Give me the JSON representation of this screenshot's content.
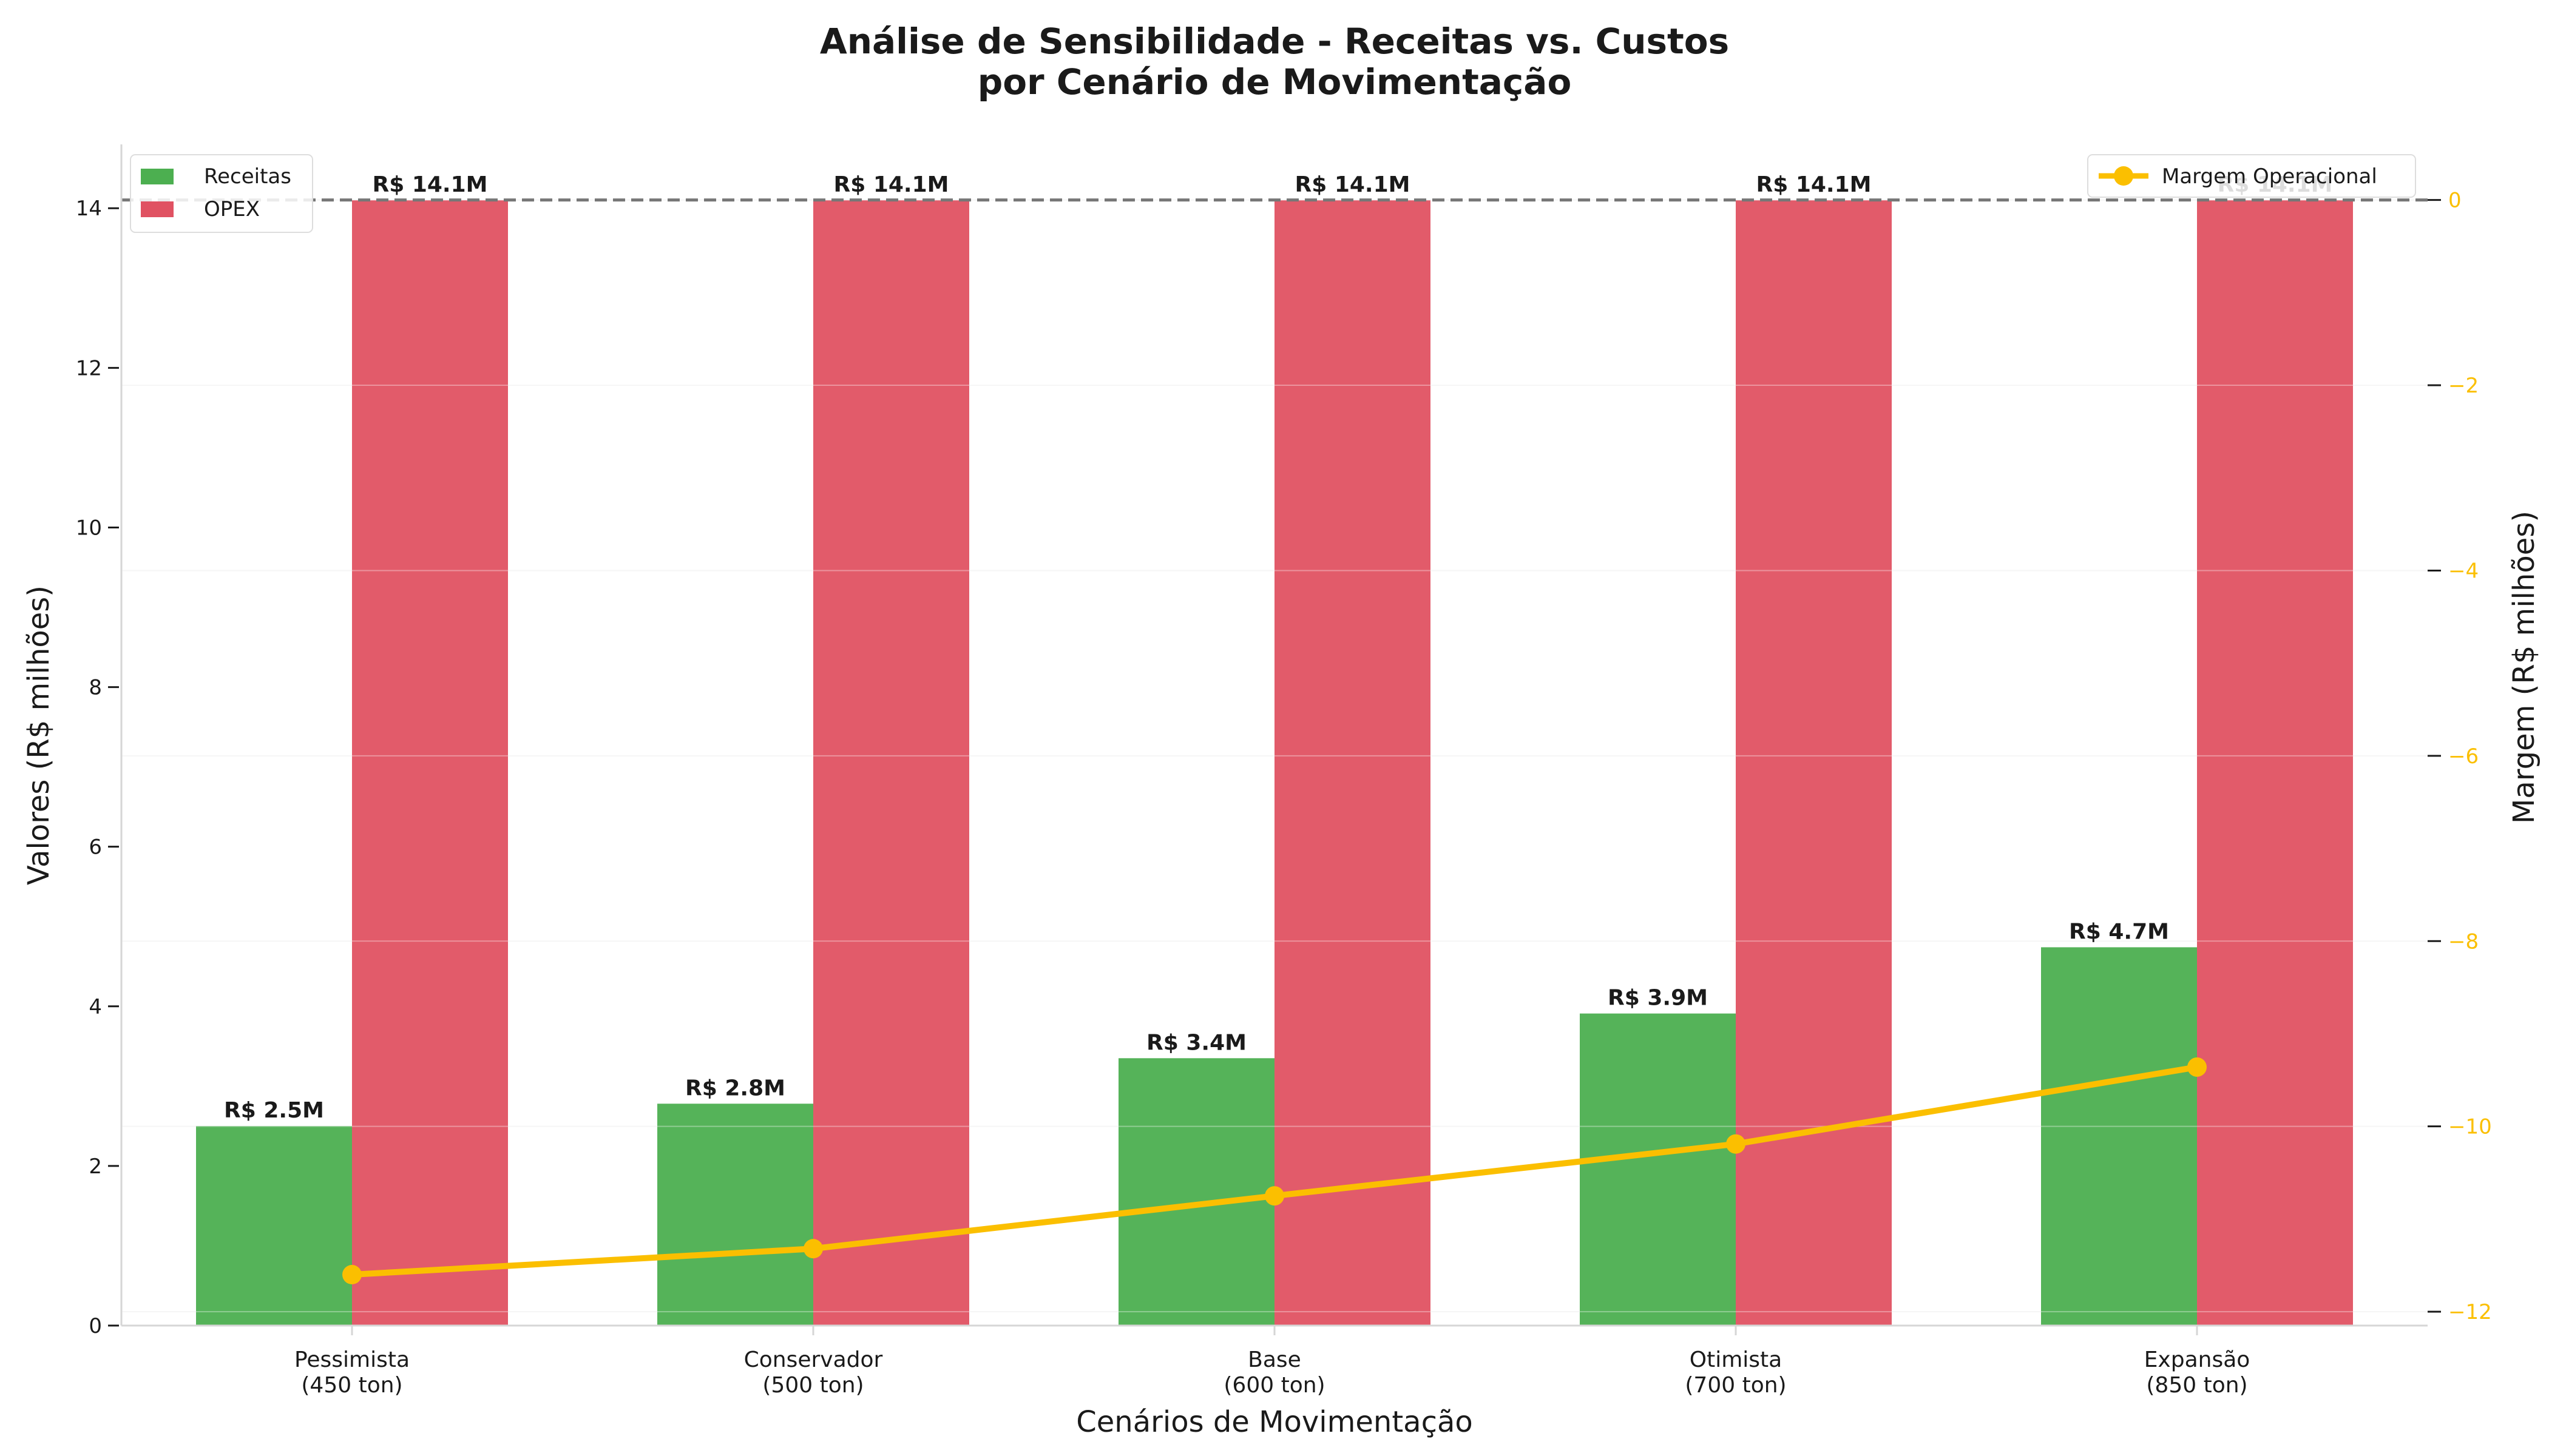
{
  "chart_data": {
    "type": "bar",
    "title": "Análise de Sensibilidade - Receitas vs. Custos",
    "subtitle": "por Cenário de Movimentação",
    "xlabel": "Cenários de Movimentação",
    "ylabel": "Valores (R$ milhões)",
    "y2label": "Margem (R$ milhões)",
    "categories": [
      "Pessimista",
      "Conservador",
      "Base",
      "Otimista",
      "Expansão"
    ],
    "category_sublabels": [
      "(450 ton)",
      "(500 ton)",
      "(600 ton)",
      "(700 ton)",
      "(850 ton)"
    ],
    "ylim": [
      0,
      14.8
    ],
    "yticks": [
      0,
      2,
      4,
      6,
      8,
      10,
      12,
      14
    ],
    "y2lim": [
      -12.15,
      0.6
    ],
    "y2ticks": [
      -12,
      -10,
      -8,
      -6,
      -4,
      -2,
      0
    ],
    "y2tick_labels": [
      "−12",
      "−10",
      "−8",
      "−6",
      "−4",
      "−2",
      "0"
    ],
    "series": [
      {
        "name": "Receitas",
        "type": "bar",
        "color": "#4caf50",
        "values": [
          2.5,
          2.78,
          3.35,
          3.91,
          4.74
        ],
        "labels": [
          "R$ 2.5M",
          "R$ 2.8M",
          "R$ 3.4M",
          "R$ 3.9M",
          "R$ 4.7M"
        ]
      },
      {
        "name": "OPEX",
        "type": "bar",
        "color": "#e05262",
        "values": [
          14.1,
          14.1,
          14.1,
          14.1,
          14.1
        ],
        "labels": [
          "R$ 14.1M",
          "R$ 14.1M",
          "R$ 14.1M",
          "R$ 14.1M",
          "R$ 14.1M"
        ]
      },
      {
        "name": "Margem Operacional",
        "type": "line",
        "axis": "right",
        "color": "#fbbf00",
        "values": [
          -11.6,
          -11.32,
          -10.75,
          -10.19,
          -9.36
        ]
      }
    ],
    "reference_line": {
      "axis": "right",
      "value": 0,
      "style": "dashed",
      "color": "#777777"
    },
    "legend_left": [
      "Receitas",
      "OPEX"
    ],
    "legend_right": [
      "Margem Operacional"
    ],
    "grid": true
  }
}
